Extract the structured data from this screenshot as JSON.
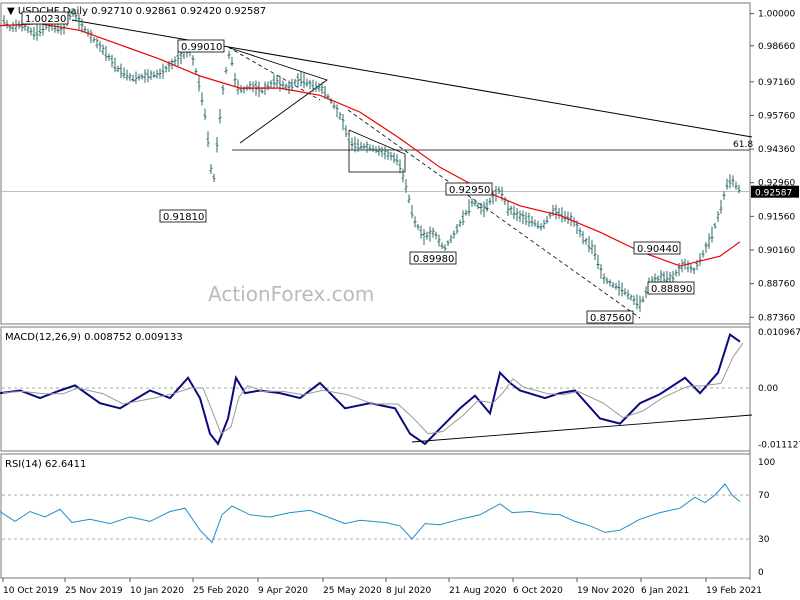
{
  "chart_data": [
    {
      "type": "ohlc",
      "symbol": "USDCHF",
      "timeframe": "Daily",
      "ohlc_last": {
        "open": "0.92710",
        "high": "0.92861",
        "low": "0.92420",
        "close": "0.92587"
      },
      "y_ticks": [
        "1.00000",
        "0.98660",
        "0.97160",
        "0.95760",
        "0.94360",
        "0.92960",
        "0.91560",
        "0.90160",
        "0.88760",
        "0.87360"
      ],
      "current_price_label": "0.92587",
      "watermark": "ActionForex.com",
      "fib_label": "61.8",
      "annotations": [
        "1.00230",
        "0.99010",
        "0.91810",
        "0.92950",
        "0.89980",
        "0.90440",
        "0.88890",
        "0.87560"
      ],
      "x_labels": [
        "10 Oct 2019",
        "25 Nov 2019",
        "10 Jan 2020",
        "25 Feb 2020",
        "9 Apr 2020",
        "25 May 2020",
        "8 Jul 2020",
        "21 Aug 2020",
        "6 Oct 2020",
        "19 Nov 2020",
        "6 Jan 2021",
        "19 Feb 2021"
      ],
      "price_path": [
        [
          0,
          0.999
        ],
        [
          10,
          0.994
        ],
        [
          20,
          0.9955
        ],
        [
          35,
          0.9915
        ],
        [
          50,
          0.9958
        ],
        [
          62,
          0.993
        ],
        [
          72,
          1.001
        ],
        [
          80,
          0.996
        ],
        [
          92,
          0.99
        ],
        [
          105,
          0.984
        ],
        [
          118,
          0.977
        ],
        [
          132,
          0.973
        ],
        [
          145,
          0.974
        ],
        [
          160,
          0.975
        ],
        [
          172,
          0.979
        ],
        [
          183,
          0.983
        ],
        [
          190,
          0.985
        ],
        [
          198,
          0.973
        ],
        [
          206,
          0.956
        ],
        [
          213,
          0.927
        ],
        [
          218,
          0.95
        ],
        [
          224,
          0.972
        ],
        [
          230,
          0.985
        ],
        [
          236,
          0.97
        ],
        [
          243,
          0.968
        ],
        [
          250,
          0.97
        ],
        [
          262,
          0.968
        ],
        [
          275,
          0.972
        ],
        [
          288,
          0.969
        ],
        [
          300,
          0.973
        ],
        [
          312,
          0.97
        ],
        [
          322,
          0.969
        ],
        [
          332,
          0.963
        ],
        [
          342,
          0.956
        ],
        [
          350,
          0.946
        ],
        [
          360,
          0.945
        ],
        [
          372,
          0.944
        ],
        [
          385,
          0.942
        ],
        [
          398,
          0.939
        ],
        [
          405,
          0.93
        ],
        [
          414,
          0.914
        ],
        [
          424,
          0.907
        ],
        [
          434,
          0.909
        ],
        [
          444,
          0.902
        ],
        [
          454,
          0.908
        ],
        [
          463,
          0.915
        ],
        [
          473,
          0.922
        ],
        [
          483,
          0.918
        ],
        [
          492,
          0.923
        ],
        [
          500,
          0.927
        ],
        [
          508,
          0.919
        ],
        [
          518,
          0.916
        ],
        [
          530,
          0.914
        ],
        [
          542,
          0.911
        ],
        [
          553,
          0.918
        ],
        [
          563,
          0.916
        ],
        [
          573,
          0.914
        ],
        [
          584,
          0.906
        ],
        [
          594,
          0.902
        ],
        [
          603,
          0.89
        ],
        [
          613,
          0.887
        ],
        [
          623,
          0.885
        ],
        [
          633,
          0.881
        ],
        [
          641,
          0.879
        ],
        [
          650,
          0.888
        ],
        [
          660,
          0.89
        ],
        [
          672,
          0.89
        ],
        [
          684,
          0.896
        ],
        [
          694,
          0.893
        ],
        [
          703,
          0.9
        ],
        [
          712,
          0.908
        ],
        [
          720,
          0.918
        ],
        [
          727,
          0.929
        ],
        [
          732,
          0.931
        ],
        [
          738,
          0.927
        ]
      ],
      "ma_path": [
        [
          0,
          0.995
        ],
        [
          40,
          0.9958
        ],
        [
          80,
          0.993
        ],
        [
          120,
          0.987
        ],
        [
          160,
          0.981
        ],
        [
          200,
          0.974
        ],
        [
          240,
          0.969
        ],
        [
          280,
          0.969
        ],
        [
          320,
          0.966
        ],
        [
          360,
          0.959
        ],
        [
          400,
          0.948
        ],
        [
          440,
          0.936
        ],
        [
          480,
          0.927
        ],
        [
          520,
          0.92
        ],
        [
          560,
          0.916
        ],
        [
          600,
          0.909
        ],
        [
          640,
          0.901
        ],
        [
          680,
          0.895
        ],
        [
          720,
          0.899
        ],
        [
          740,
          0.905
        ]
      ],
      "macd_label": "MACD(12,26,9) 0.008752 0.009133",
      "macd_ticks": [
        "0.010967",
        "0.00",
        "-0.011127"
      ],
      "rsi_label": "RSI(14) 62.6411",
      "rsi_ticks": [
        "100",
        "70",
        "30",
        "0"
      ]
    }
  ]
}
